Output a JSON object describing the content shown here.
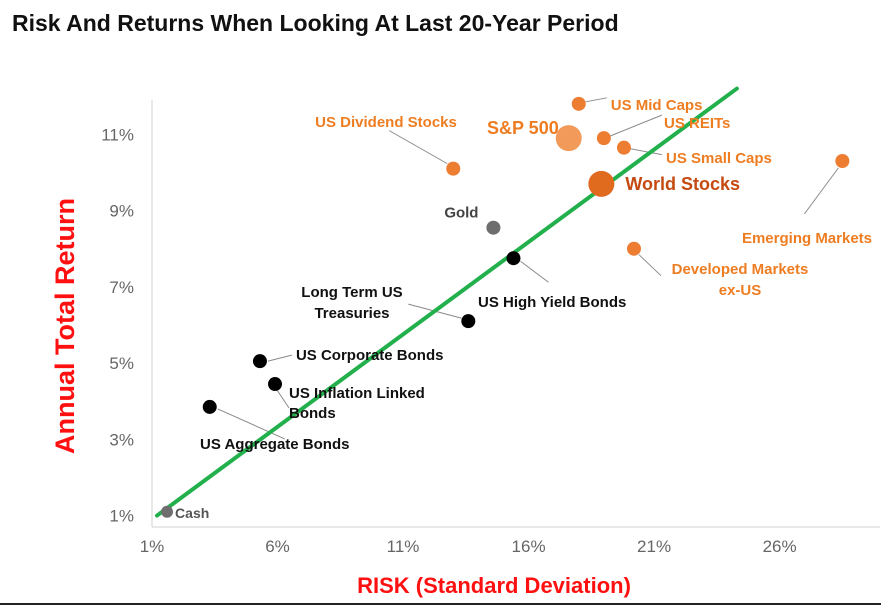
{
  "title": "Risk And Returns When Looking At Last 20-Year Period",
  "colors": {
    "equity": "#ed7d31",
    "equity_text": "#ee7d22",
    "world_text": "#c44a10",
    "bond": "#000000",
    "other": "#6e6e6e",
    "trend": "#22b04c",
    "axis_title": "#ff1010"
  },
  "chart_data": {
    "type": "scatter",
    "xlabel": "RISK (Standard Deviation)",
    "ylabel": "Annual Total Return",
    "xlim": [
      1,
      30
    ],
    "ylim": [
      0.7,
      11.9
    ],
    "x_ticks": [
      1,
      6,
      11,
      16,
      21,
      26
    ],
    "x_tick_labels": [
      "1%",
      "6%",
      "11%",
      "16%",
      "21%",
      "26%"
    ],
    "y_ticks": [
      1,
      3,
      5,
      7,
      9,
      11
    ],
    "y_tick_labels": [
      "1%",
      "3%",
      "5%",
      "7%",
      "9%",
      "11%"
    ],
    "grid": false,
    "trendline": {
      "x": [
        1.2,
        24.3
      ],
      "y": [
        1.0,
        12.2
      ]
    },
    "points": [
      {
        "label": "Cash",
        "x": 1.6,
        "y": 1.1,
        "group": "other",
        "size": "small"
      },
      {
        "label": "US Aggregate Bonds",
        "x": 3.3,
        "y": 3.85,
        "group": "bond",
        "size": "medium"
      },
      {
        "label": "US Corporate Bonds",
        "x": 5.3,
        "y": 5.05,
        "group": "bond",
        "size": "medium"
      },
      {
        "label": "US Inflation Linked Bonds",
        "label_lines": [
          "US Inflation Linked",
          "Bonds"
        ],
        "x": 5.9,
        "y": 4.45,
        "group": "bond",
        "size": "medium"
      },
      {
        "label": "Long Term US Treasuries",
        "label_lines": [
          "Long Term US",
          "Treasuries"
        ],
        "x": 13.6,
        "y": 6.1,
        "group": "bond",
        "size": "medium"
      },
      {
        "label": "US High Yield Bonds",
        "x": 15.4,
        "y": 7.75,
        "group": "bond",
        "size": "medium"
      },
      {
        "label": "Gold",
        "x": 14.6,
        "y": 8.55,
        "group": "other",
        "size": "medium"
      },
      {
        "label": "US Dividend Stocks",
        "x": 13.0,
        "y": 10.1,
        "group": "equity",
        "size": "medium"
      },
      {
        "label": "S&P 500",
        "x": 17.6,
        "y": 10.9,
        "group": "equity",
        "size": "large"
      },
      {
        "label": "US Mid Caps",
        "x": 18.0,
        "y": 11.8,
        "group": "equity",
        "size": "medium"
      },
      {
        "label": "US REITs",
        "x": 19.0,
        "y": 10.9,
        "group": "equity",
        "size": "medium"
      },
      {
        "label": "US Small Caps",
        "x": 19.8,
        "y": 10.65,
        "group": "equity",
        "size": "medium"
      },
      {
        "label": "World Stocks",
        "x": 18.9,
        "y": 9.7,
        "group": "equity",
        "size": "large"
      },
      {
        "label": "Developed Markets ex-US",
        "label_lines": [
          "Developed Markets",
          "ex-US"
        ],
        "x": 20.2,
        "y": 8.0,
        "group": "equity",
        "size": "medium"
      },
      {
        "label": "Emerging Markets",
        "x": 28.5,
        "y": 10.3,
        "group": "equity",
        "size": "medium"
      }
    ]
  }
}
